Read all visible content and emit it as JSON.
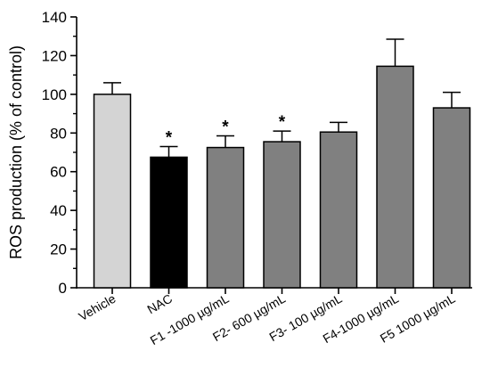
{
  "chart_data": {
    "type": "bar",
    "title": "",
    "xlabel": "",
    "ylabel": "ROS production (% of control)",
    "ylim": [
      0,
      140
    ],
    "yticks": [
      "0",
      "20",
      "40",
      "60",
      "80",
      "100",
      "120",
      "140"
    ],
    "grid": false,
    "categories": [
      "Vehicle",
      "NAC",
      "F1 -1000 µg/mL",
      "F2- 600 µg/mL",
      "F3- 100 µg/mL",
      "F4-1000 µg/mL",
      "F5 1000 µg/mL"
    ],
    "values": [
      100,
      67.5,
      72.5,
      75.5,
      80.5,
      114.5,
      93
    ],
    "error": [
      6,
      5.5,
      6,
      5.5,
      5,
      14,
      8
    ],
    "significance": [
      "",
      "*",
      "*",
      "*",
      "",
      "",
      ""
    ],
    "bar_colors": [
      "#d4d4d4",
      "#000000",
      "#808080",
      "#808080",
      "#808080",
      "#808080",
      "#808080"
    ]
  }
}
